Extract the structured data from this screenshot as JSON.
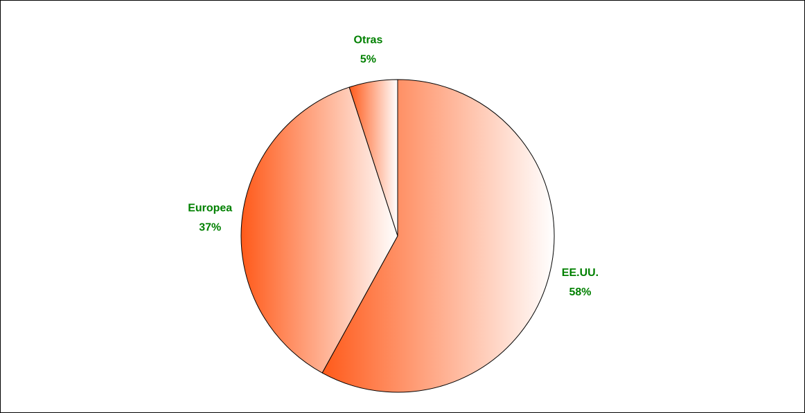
{
  "chart_data": {
    "type": "pie",
    "categories": [
      "EE.UU.",
      "Europea",
      "Otras"
    ],
    "values": [
      58,
      37,
      5
    ],
    "value_labels": [
      "58%",
      "37%",
      "5%"
    ],
    "colors": [
      "#ff5a1a",
      "#ff5a1a",
      "#ff5a1a"
    ]
  }
}
